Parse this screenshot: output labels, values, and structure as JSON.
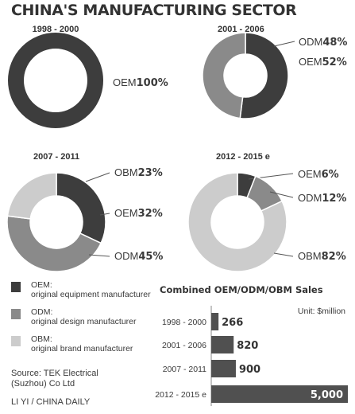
{
  "title": "CHINA'S MANUFACTURING SECTOR",
  "colors": {
    "OEM": "#3d3d3d",
    "ODM": "#8a8a8a",
    "OBM": "#cccccc",
    "bar": "#505050"
  },
  "chart_data": [
    {
      "type": "pie",
      "period": "1998 - 2000",
      "slices": [
        {
          "label": "OEM",
          "value": 100,
          "value_label": "100%"
        }
      ]
    },
    {
      "type": "pie",
      "period": "2001 - 2006",
      "slices": [
        {
          "label": "OEM",
          "value": 52,
          "value_label": "52%"
        },
        {
          "label": "ODM",
          "value": 48,
          "value_label": "48%"
        }
      ]
    },
    {
      "type": "pie",
      "period": "2007 - 2011",
      "slices": [
        {
          "label": "OEM",
          "value": 32,
          "value_label": "32%"
        },
        {
          "label": "ODM",
          "value": 45,
          "value_label": "45%"
        },
        {
          "label": "OBM",
          "value": 23,
          "value_label": "23%"
        }
      ]
    },
    {
      "type": "pie",
      "period": "2012 - 2015 e",
      "slices": [
        {
          "label": "OEM",
          "value": 6,
          "value_label": "6%"
        },
        {
          "label": "ODM",
          "value": 12,
          "value_label": "12%"
        },
        {
          "label": "OBM",
          "value": 82,
          "value_label": "82%"
        }
      ]
    },
    {
      "type": "bar",
      "title": "Combined OEM/ODM/OBM Sales",
      "unit": "Unit: $million",
      "categories": [
        "1998 - 2000",
        "2001 - 2006",
        "2007 - 2011",
        "2012 - 2015 e"
      ],
      "values": [
        266,
        820,
        900,
        5000
      ],
      "value_labels": [
        "266",
        "820",
        "900",
        "5,000"
      ]
    }
  ],
  "legend": [
    {
      "key": "OEM",
      "label": "OEM:",
      "desc": "original equipment manufacturer"
    },
    {
      "key": "ODM",
      "label": "ODM:",
      "desc": "original design manufacturer"
    },
    {
      "key": "OBM",
      "label": "OBM:",
      "desc": "original brand manufacturer"
    }
  ],
  "source": {
    "line1": "Source: TEK Electrical",
    "line2": "(Suzhou) Co Ltd"
  },
  "credit": "LI YI / CHINA DAILY"
}
